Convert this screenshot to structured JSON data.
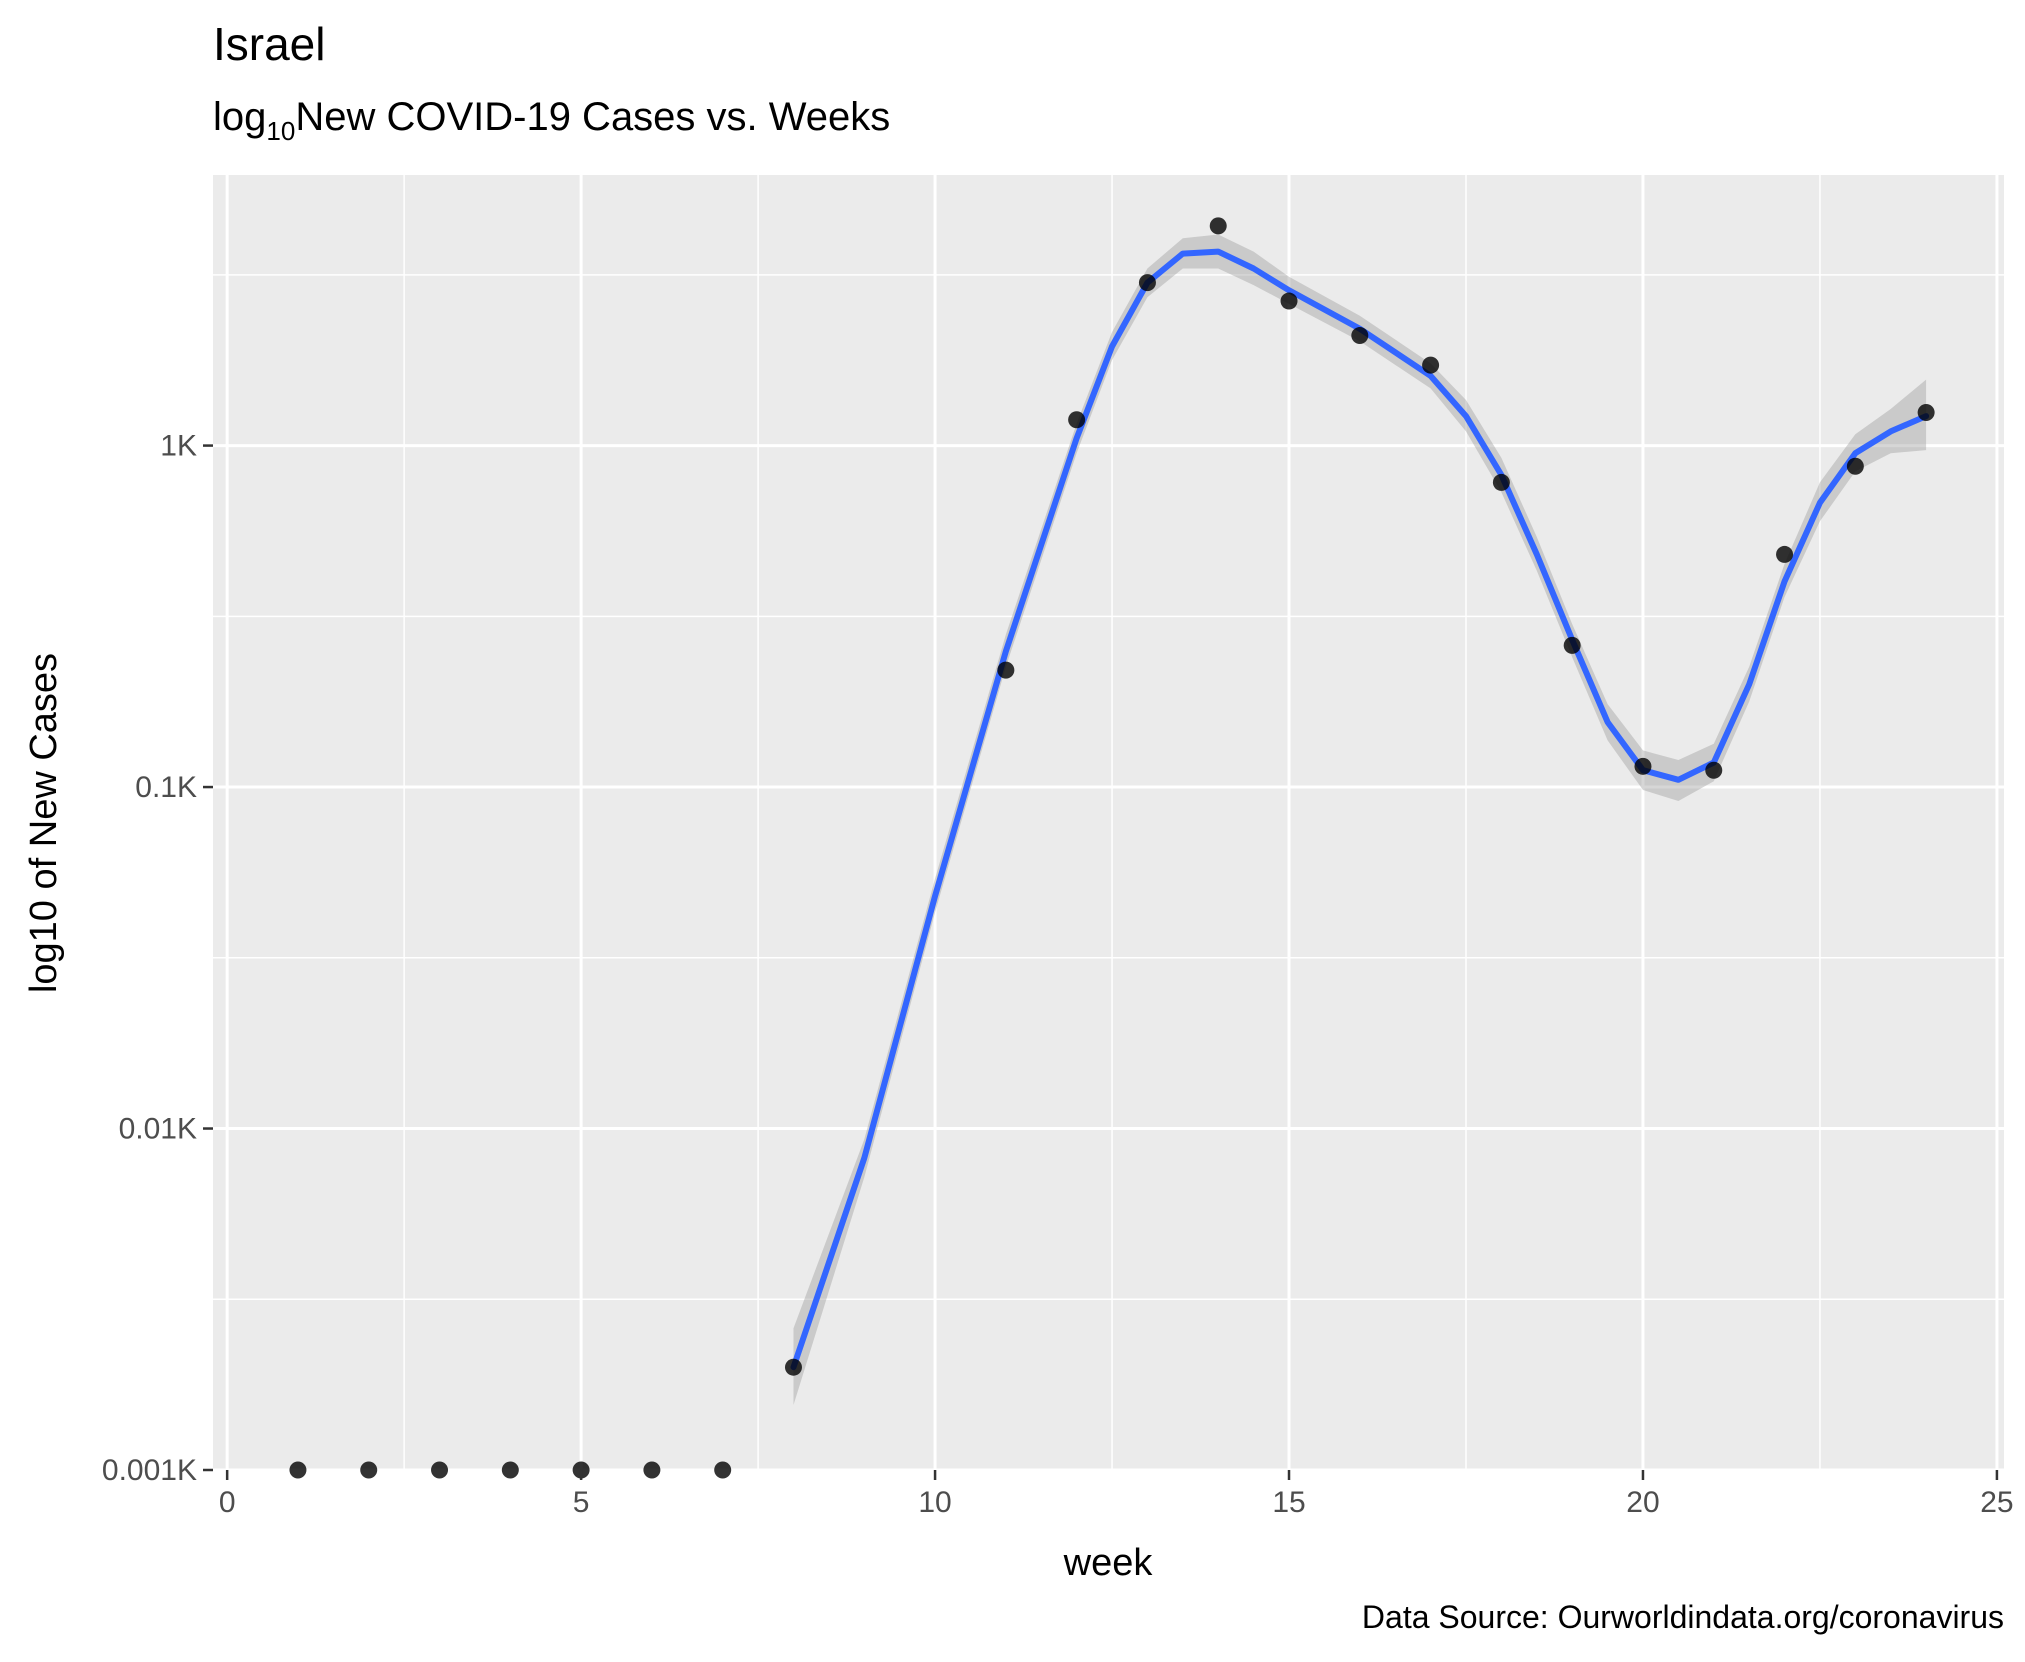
{
  "chart_data": {
    "type": "scatter",
    "title": "Israel",
    "subtitle_prefix": "log",
    "subtitle_sub": "10",
    "subtitle_rest": "New COVID-19 Cases vs. Weeks",
    "xlabel": "week",
    "ylabel": "log10 of New Cases",
    "caption": "Data Source: Ourworldindata.org/coronavirus",
    "xlim": [
      -0.2,
      25.1
    ],
    "ylim": [
      0.001,
      6.2
    ],
    "y_scale": "log10",
    "grid": true,
    "x_ticks": [
      0,
      5,
      10,
      15,
      20,
      25
    ],
    "x_tick_labels": [
      "0",
      "5",
      "10",
      "15",
      "20",
      "25"
    ],
    "y_ticks": [
      0.001,
      0.01,
      0.1,
      1
    ],
    "y_tick_labels": [
      "0.001K",
      "0.01K",
      "0.1K",
      "1K"
    ],
    "point_color": "#000000",
    "smooth_color": "#3366ff",
    "ribbon_color": "#999999",
    "panel_color": "#ebebeb",
    "points": [
      {
        "x": 1,
        "y": 0.001
      },
      {
        "x": 2,
        "y": 0.001
      },
      {
        "x": 3,
        "y": 0.001
      },
      {
        "x": 4,
        "y": 0.001
      },
      {
        "x": 5,
        "y": 0.001
      },
      {
        "x": 6,
        "y": 0.001
      },
      {
        "x": 7,
        "y": 0.001
      },
      {
        "x": 8,
        "y": 0.002
      },
      {
        "x": 11,
        "y": 0.22
      },
      {
        "x": 12,
        "y": 1.19
      },
      {
        "x": 13,
        "y": 3.0
      },
      {
        "x": 14,
        "y": 4.4
      },
      {
        "x": 15,
        "y": 2.65
      },
      {
        "x": 16,
        "y": 2.1
      },
      {
        "x": 17,
        "y": 1.72
      },
      {
        "x": 18,
        "y": 0.78
      },
      {
        "x": 19,
        "y": 0.26
      },
      {
        "x": 20,
        "y": 0.115
      },
      {
        "x": 21,
        "y": 0.112
      },
      {
        "x": 22,
        "y": 0.48
      },
      {
        "x": 23,
        "y": 0.87
      },
      {
        "x": 24,
        "y": 1.25
      }
    ],
    "smooth": {
      "x": [
        8,
        9,
        10,
        11,
        12,
        12.5,
        13,
        13.5,
        14,
        14.5,
        15,
        16,
        17,
        17.5,
        18,
        18.5,
        19,
        19.5,
        20,
        20.5,
        21,
        21.5,
        22,
        22.5,
        23,
        23.5,
        24
      ],
      "y": [
        0.002,
        0.0082,
        0.048,
        0.25,
        1.05,
        1.95,
        3.0,
        3.65,
        3.7,
        3.3,
        2.85,
        2.2,
        1.6,
        1.22,
        0.82,
        0.48,
        0.27,
        0.155,
        0.112,
        0.105,
        0.118,
        0.2,
        0.4,
        0.68,
        0.95,
        1.1,
        1.22
      ],
      "lower": [
        0.00155,
        0.0072,
        0.043,
        0.225,
        0.95,
        1.78,
        2.72,
        3.3,
        3.3,
        2.95,
        2.6,
        2.02,
        1.47,
        1.1,
        0.73,
        0.43,
        0.24,
        0.137,
        0.098,
        0.091,
        0.104,
        0.178,
        0.36,
        0.6,
        0.84,
        0.95,
        0.97
      ],
      "upper": [
        0.0026,
        0.0093,
        0.054,
        0.28,
        1.16,
        2.15,
        3.3,
        4.05,
        4.15,
        3.7,
        3.12,
        2.4,
        1.74,
        1.36,
        0.92,
        0.54,
        0.3,
        0.175,
        0.128,
        0.12,
        0.134,
        0.225,
        0.45,
        0.78,
        1.08,
        1.28,
        1.56
      ]
    }
  }
}
